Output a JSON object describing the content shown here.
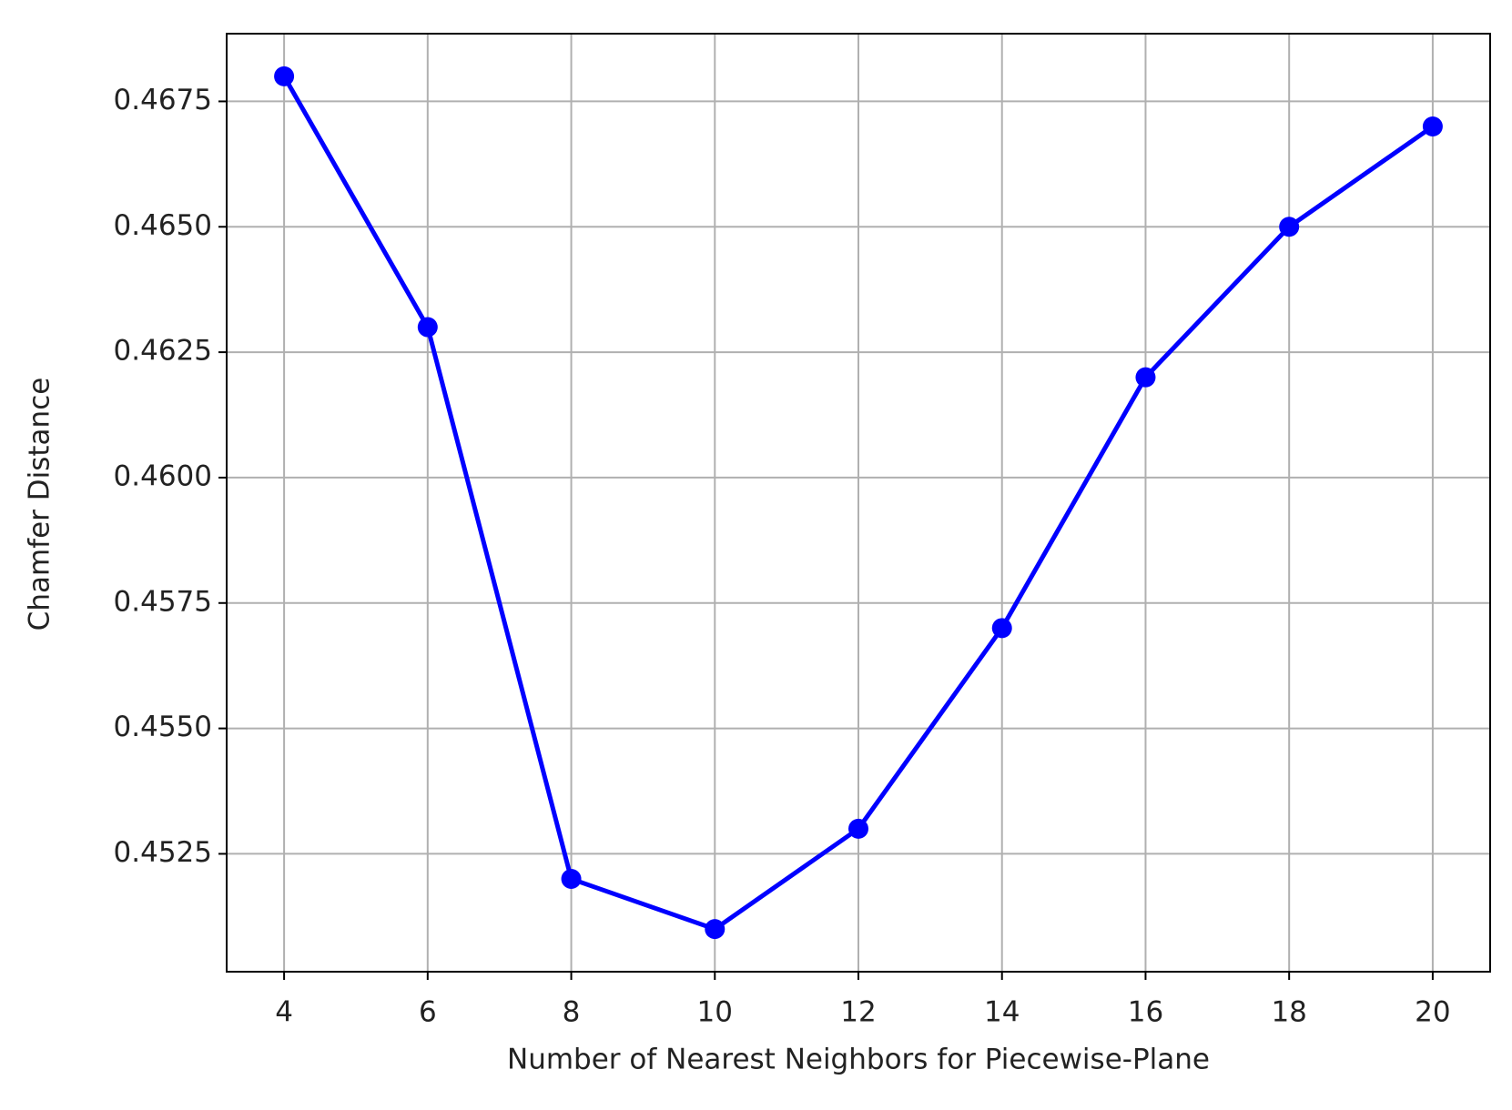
{
  "chart_data": {
    "type": "line",
    "xlabel": "Number of Nearest Neighbors for Piecewise-Plane",
    "ylabel": "Chamfer Distance",
    "x": [
      4,
      6,
      8,
      10,
      12,
      14,
      16,
      18,
      20
    ],
    "series": [
      {
        "color": "#0000ff",
        "values": [
          0.468,
          0.463,
          0.452,
          0.451,
          0.453,
          0.457,
          0.462,
          0.465,
          0.467
        ]
      }
    ],
    "xlim": [
      3.2,
      20.8
    ],
    "xticks": [
      4,
      6,
      8,
      10,
      12,
      14,
      16,
      18,
      20
    ],
    "ylim": [
      0.45015,
      0.46885
    ],
    "yticks": [
      0.4525,
      {
        "value": 0.455,
        "label": "0.4550"
      },
      0.4575,
      {
        "value": 0.46,
        "label": "0.4600"
      },
      0.4625,
      {
        "value": 0.465,
        "label": "0.4650"
      },
      0.4675
    ],
    "grid": true
  }
}
